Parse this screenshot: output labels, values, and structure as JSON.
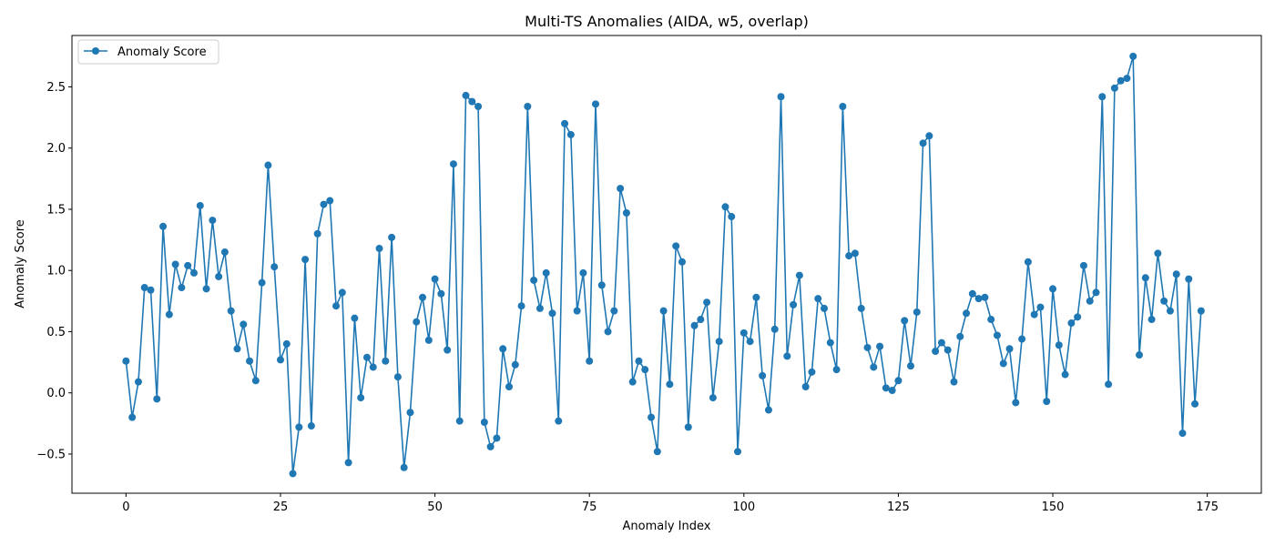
{
  "chart_data": {
    "type": "line",
    "title": "Multi-TS Anomalies (AIDA, w5, overlap)",
    "xlabel": "Anomaly Index",
    "ylabel": "Anomaly Score",
    "xlim": [
      -8.75,
      183.75
    ],
    "ylim": [
      -0.82,
      2.92
    ],
    "xticks": [
      0,
      25,
      50,
      75,
      100,
      125,
      150,
      175
    ],
    "yticks": [
      -0.5,
      0.0,
      0.5,
      1.0,
      1.5,
      2.0,
      2.5
    ],
    "xtick_labels": [
      "0",
      "25",
      "50",
      "75",
      "100",
      "125",
      "150",
      "175"
    ],
    "ytick_labels": [
      "−0.5",
      "0.0",
      "0.5",
      "1.0",
      "1.5",
      "2.0",
      "2.5"
    ],
    "grid": false,
    "legend_position": "top-left",
    "series": [
      {
        "name": "Anomaly Score",
        "color": "#1f77b4",
        "marker": "circle",
        "values": [
          0.26,
          -0.2,
          0.09,
          0.86,
          0.84,
          -0.05,
          1.36,
          0.64,
          1.05,
          0.86,
          1.04,
          0.98,
          1.53,
          0.85,
          1.41,
          0.95,
          1.15,
          0.67,
          0.36,
          0.56,
          0.26,
          0.1,
          0.9,
          1.86,
          1.03,
          0.27,
          0.4,
          -0.66,
          -0.28,
          1.09,
          -0.27,
          1.3,
          1.54,
          1.57,
          0.71,
          0.82,
          -0.57,
          0.61,
          -0.04,
          0.29,
          0.21,
          1.18,
          0.26,
          1.27,
          0.13,
          -0.61,
          -0.16,
          0.58,
          0.78,
          0.43,
          0.93,
          0.81,
          0.35,
          1.87,
          -0.23,
          2.43,
          2.38,
          2.34,
          -0.24,
          -0.44,
          -0.37,
          0.36,
          0.05,
          0.23,
          0.71,
          2.34,
          0.92,
          0.69,
          0.98,
          0.65,
          -0.23,
          2.2,
          2.11,
          0.67,
          0.98,
          0.26,
          2.36,
          0.88,
          0.5,
          0.67,
          1.67,
          1.47,
          0.09,
          0.26,
          0.19,
          -0.2,
          -0.48,
          0.67,
          0.07,
          1.2,
          1.07,
          -0.28,
          0.55,
          0.6,
          0.74,
          -0.04,
          0.42,
          1.52,
          1.44,
          -0.48,
          0.49,
          0.42,
          0.78,
          0.14,
          -0.14,
          0.52,
          2.42,
          0.3,
          0.72,
          0.96,
          0.05,
          0.17,
          0.77,
          0.69,
          0.41,
          0.19,
          2.34,
          1.12,
          1.14,
          0.69,
          0.37,
          0.21,
          0.38,
          0.04,
          0.02,
          0.1,
          0.59,
          0.22,
          0.66,
          2.04,
          2.1,
          0.34,
          0.41,
          0.35,
          0.09,
          0.46,
          0.65,
          0.81,
          0.77,
          0.78,
          0.6,
          0.47,
          0.24,
          0.36,
          -0.08,
          0.44,
          1.07,
          0.64,
          0.7,
          -0.07,
          0.85,
          0.39,
          0.15,
          0.57,
          0.62,
          1.04,
          0.75,
          0.82,
          2.42,
          0.07,
          2.49,
          2.55,
          2.57,
          2.75,
          0.31,
          0.94,
          0.6,
          1.14,
          0.75,
          0.67,
          0.97,
          -0.33,
          0.93,
          -0.09,
          0.67
        ]
      }
    ]
  }
}
